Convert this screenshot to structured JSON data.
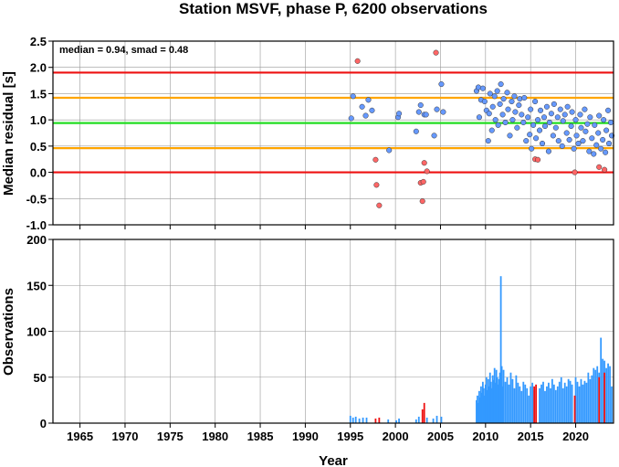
{
  "chart_data": [
    {
      "type": "scatter",
      "title": "Station MSVF, phase P, 6200 observations",
      "xlabel": "",
      "ylabel": "Median residual [s]",
      "xlim": [
        1962,
        2024.2
      ],
      "ylim": [
        -1.0,
        2.5
      ],
      "x_ticks": [
        "1965",
        "1970",
        "1975",
        "1980",
        "1985",
        "1990",
        "1995",
        "2000",
        "2005",
        "2010",
        "2015",
        "2020"
      ],
      "y_ticks": [
        "-1.0",
        "-0.5",
        "0.0",
        "0.5",
        "1.0",
        "1.5",
        "2.0",
        "2.5"
      ],
      "grid": true,
      "annotation": "median = 0.94, smad = 0.48",
      "reference_lines": [
        {
          "value": 1.9,
          "color": "#ee1111"
        },
        {
          "value": 1.42,
          "color": "#ffa500"
        },
        {
          "value": 0.94,
          "color": "#22dd22"
        },
        {
          "value": 0.46,
          "color": "#ffa500"
        },
        {
          "value": 0.0,
          "color": "#ee1111"
        }
      ],
      "series": [
        {
          "color": "#6699ff",
          "points": [
            [
              1995.1,
              1.03
            ],
            [
              1995.3,
              1.45
            ],
            [
              1996.3,
              1.25
            ],
            [
              1996.7,
              1.08
            ],
            [
              1997.0,
              1.38
            ],
            [
              1997.4,
              1.18
            ],
            [
              1999.3,
              0.42
            ],
            [
              2000.3,
              1.05
            ],
            [
              2000.4,
              1.12
            ],
            [
              2002.3,
              0.78
            ],
            [
              2002.6,
              1.15
            ],
            [
              2002.8,
              1.28
            ],
            [
              2003.2,
              1.1
            ],
            [
              2003.4,
              1.1
            ],
            [
              2004.3,
              0.7
            ],
            [
              2004.6,
              1.2
            ],
            [
              2005.1,
              1.68
            ],
            [
              2005.3,
              1.15
            ],
            [
              2009.0,
              1.55
            ],
            [
              2009.2,
              1.62
            ],
            [
              2009.3,
              1.05
            ],
            [
              2009.5,
              1.38
            ],
            [
              2009.7,
              1.6
            ],
            [
              2009.9,
              1.35
            ],
            [
              2010.1,
              1.18
            ],
            [
              2010.3,
              0.6
            ],
            [
              2010.4,
              1.12
            ],
            [
              2010.5,
              1.5
            ],
            [
              2010.7,
              0.8
            ],
            [
              2010.8,
              1.25
            ],
            [
              2011.0,
              1.45
            ],
            [
              2011.1,
              1.0
            ],
            [
              2011.3,
              1.55
            ],
            [
              2011.4,
              0.9
            ],
            [
              2011.6,
              1.3
            ],
            [
              2011.7,
              1.68
            ],
            [
              2011.9,
              1.1
            ],
            [
              2012.0,
              1.4
            ],
            [
              2012.2,
              0.95
            ],
            [
              2012.4,
              1.52
            ],
            [
              2012.5,
              1.2
            ],
            [
              2012.7,
              0.7
            ],
            [
              2012.9,
              1.35
            ],
            [
              2013.0,
              1.0
            ],
            [
              2013.2,
              1.45
            ],
            [
              2013.3,
              1.15
            ],
            [
              2013.5,
              0.85
            ],
            [
              2013.7,
              1.28
            ],
            [
              2013.8,
              1.4
            ],
            [
              2014.0,
              1.1
            ],
            [
              2014.2,
              0.95
            ],
            [
              2014.3,
              1.42
            ],
            [
              2014.5,
              0.6
            ],
            [
              2014.7,
              1.05
            ],
            [
              2014.9,
              0.72
            ],
            [
              2015.0,
              1.2
            ],
            [
              2015.1,
              0.45
            ],
            [
              2015.3,
              0.9
            ],
            [
              2015.5,
              1.35
            ],
            [
              2015.6,
              0.65
            ],
            [
              2015.8,
              1.0
            ],
            [
              2016.0,
              0.8
            ],
            [
              2016.1,
              1.18
            ],
            [
              2016.3,
              0.55
            ],
            [
              2016.5,
              1.05
            ],
            [
              2016.6,
              0.88
            ],
            [
              2016.8,
              1.25
            ],
            [
              2017.0,
              0.4
            ],
            [
              2017.1,
              0.95
            ],
            [
              2017.3,
              1.12
            ],
            [
              2017.5,
              0.7
            ],
            [
              2017.6,
              1.3
            ],
            [
              2017.8,
              0.85
            ],
            [
              2018.0,
              1.05
            ],
            [
              2018.1,
              0.6
            ],
            [
              2018.3,
              1.2
            ],
            [
              2018.5,
              0.5
            ],
            [
              2018.6,
              0.98
            ],
            [
              2018.8,
              1.1
            ],
            [
              2019.0,
              0.75
            ],
            [
              2019.1,
              1.25
            ],
            [
              2019.3,
              0.62
            ],
            [
              2019.5,
              0.88
            ],
            [
              2019.6,
              1.15
            ],
            [
              2019.8,
              0.45
            ],
            [
              2020.0,
              1.0
            ],
            [
              2020.1,
              0.7
            ],
            [
              2020.3,
              0.55
            ],
            [
              2020.5,
              1.1
            ],
            [
              2020.6,
              0.85
            ],
            [
              2020.8,
              0.6
            ],
            [
              2021.0,
              1.2
            ],
            [
              2021.1,
              0.78
            ],
            [
              2021.3,
              0.92
            ],
            [
              2021.5,
              0.4
            ],
            [
              2021.6,
              1.05
            ],
            [
              2021.8,
              0.65
            ],
            [
              2022.0,
              0.35
            ],
            [
              2022.1,
              0.9
            ],
            [
              2022.3,
              0.52
            ],
            [
              2022.5,
              0.75
            ],
            [
              2022.6,
              1.08
            ],
            [
              2022.8,
              0.45
            ],
            [
              2023.0,
              0.62
            ],
            [
              2023.1,
              1.0
            ],
            [
              2023.3,
              0.38
            ],
            [
              2023.4,
              0.8
            ],
            [
              2023.6,
              1.18
            ],
            [
              2023.7,
              0.55
            ],
            [
              2023.9,
              0.95
            ],
            [
              2024.0,
              0.7
            ]
          ]
        },
        {
          "color": "#ff6666",
          "points": [
            [
              1995.8,
              2.12
            ],
            [
              1997.8,
              0.24
            ],
            [
              1997.9,
              -0.24
            ],
            [
              1998.2,
              -0.63
            ],
            [
              2002.8,
              -0.2
            ],
            [
              2003.0,
              -0.55
            ],
            [
              2003.1,
              -0.18
            ],
            [
              2003.2,
              0.18
            ],
            [
              2003.5,
              0.02
            ],
            [
              2004.5,
              2.28
            ],
            [
              2015.5,
              0.25
            ],
            [
              2015.8,
              0.24
            ],
            [
              2019.9,
              0.0
            ],
            [
              2022.6,
              0.1
            ],
            [
              2023.2,
              0.05
            ]
          ]
        }
      ]
    },
    {
      "type": "bar",
      "title": "",
      "xlabel": "Year",
      "ylabel": "Observations",
      "xlim": [
        1962,
        2024.2
      ],
      "ylim": [
        0,
        200
      ],
      "x_ticks": [
        "1965",
        "1970",
        "1975",
        "1980",
        "1985",
        "1990",
        "1995",
        "2000",
        "2005",
        "2010",
        "2015",
        "2020"
      ],
      "y_ticks": [
        "0",
        "50",
        "100",
        "150",
        "200"
      ],
      "grid": true,
      "series": [
        {
          "color": "#3399ff",
          "x": [
            1995.0,
            1995.3,
            1995.6,
            1996.0,
            1996.4,
            1996.8,
            1999.2,
            2000.1,
            2000.4,
            2002.3,
            2002.6,
            2003.5,
            2004.2,
            2004.6,
            2005.1,
            2009.0,
            2009.1,
            2009.2,
            2009.3,
            2009.4,
            2009.5,
            2009.6,
            2009.7,
            2009.8,
            2009.9,
            2010.0,
            2010.1,
            2010.2,
            2010.3,
            2010.4,
            2010.5,
            2010.6,
            2010.7,
            2010.8,
            2010.9,
            2011.0,
            2011.1,
            2011.2,
            2011.3,
            2011.4,
            2011.5,
            2011.6,
            2011.7,
            2011.8,
            2011.9,
            2012.0,
            2012.2,
            2012.4,
            2012.6,
            2012.8,
            2013.0,
            2013.2,
            2013.4,
            2013.6,
            2013.8,
            2014.0,
            2014.2,
            2014.4,
            2014.6,
            2014.8,
            2015.0,
            2015.2,
            2015.4,
            2016.0,
            2016.2,
            2016.4,
            2016.6,
            2016.8,
            2017.0,
            2017.2,
            2017.4,
            2017.6,
            2017.8,
            2018.0,
            2018.2,
            2018.4,
            2018.6,
            2018.8,
            2019.0,
            2019.2,
            2019.4,
            2019.6,
            2020.0,
            2020.2,
            2020.4,
            2020.6,
            2020.8,
            2021.0,
            2021.2,
            2021.4,
            2021.6,
            2021.8,
            2022.0,
            2022.2,
            2022.4,
            2022.6,
            2022.8,
            2023.0,
            2023.2,
            2023.4,
            2023.6,
            2023.8,
            2024.0
          ],
          "values": [
            8,
            6,
            7,
            5,
            6,
            6,
            4,
            3,
            5,
            4,
            7,
            6,
            5,
            8,
            7,
            25,
            30,
            22,
            35,
            28,
            40,
            33,
            45,
            38,
            30,
            42,
            50,
            36,
            48,
            40,
            55,
            45,
            38,
            52,
            47,
            60,
            44,
            58,
            50,
            42,
            48,
            55,
            160,
            62,
            40,
            58,
            45,
            50,
            42,
            55,
            48,
            38,
            52,
            44,
            40,
            35,
            45,
            42,
            38,
            30,
            40,
            44,
            36,
            38,
            42,
            45,
            35,
            40,
            44,
            38,
            48,
            42,
            36,
            40,
            45,
            50,
            38,
            44,
            40,
            48,
            46,
            42,
            50,
            45,
            40,
            48,
            42,
            46,
            44,
            55,
            48,
            52,
            60,
            58,
            62,
            55,
            93,
            70,
            68,
            60,
            65,
            62,
            40
          ]
        },
        {
          "color": "#ee1111",
          "x": [
            1997.8,
            1998.2,
            2003.0,
            2003.2,
            2015.4,
            2015.6,
            2019.9,
            2022.6,
            2023.2
          ],
          "values": [
            5,
            6,
            15,
            22,
            40,
            42,
            30,
            50,
            55
          ]
        }
      ]
    }
  ]
}
